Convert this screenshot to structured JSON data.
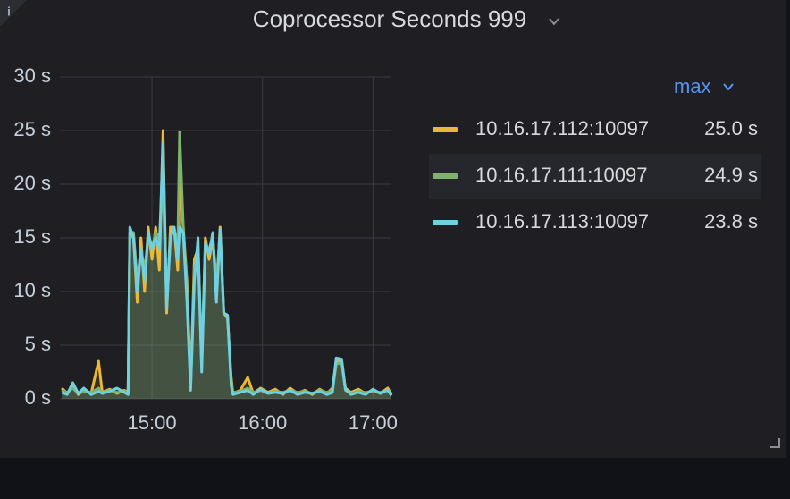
{
  "chart_data": {
    "type": "line",
    "title": "Coprocessor Seconds 999",
    "x": [
      "14:11",
      "14:14",
      "14:17",
      "14:20",
      "14:23",
      "14:27",
      "14:31",
      "14:33",
      "14:37",
      "14:41",
      "14:45",
      "14:47",
      "14:48",
      "14:50",
      "14:52",
      "14:54",
      "14:56",
      "14:58",
      "15:00",
      "15:02",
      "15:04",
      "15:06",
      "15:08",
      "15:10",
      "15:12",
      "15:14",
      "15:15",
      "15:17",
      "15:19",
      "15:21",
      "15:23",
      "15:25",
      "15:27",
      "15:29",
      "15:31",
      "15:33",
      "15:35",
      "15:37",
      "15:39",
      "15:41",
      "15:43",
      "15:44",
      "15:48",
      "15:52",
      "15:55",
      "15:59",
      "16:03",
      "16:07",
      "16:11",
      "16:15",
      "16:19",
      "16:23",
      "16:27",
      "16:31",
      "16:35",
      "16:38",
      "16:40",
      "16:43",
      "16:45",
      "16:48",
      "16:52",
      "16:56",
      "17:00",
      "17:04",
      "17:08",
      "17:10"
    ],
    "xlim": [
      "14:10",
      "17:10"
    ],
    "xticks": [
      "15:00",
      "16:00",
      "17:00"
    ],
    "ylim": [
      0,
      30
    ],
    "yticks": [
      {
        "value": 0,
        "label": "0 s"
      },
      {
        "value": 5,
        "label": "5 s"
      },
      {
        "value": 10,
        "label": "10 s"
      },
      {
        "value": 15,
        "label": "15 s"
      },
      {
        "value": 20,
        "label": "20 s"
      },
      {
        "value": 25,
        "label": "25 s"
      },
      {
        "value": 30,
        "label": "30 s"
      }
    ],
    "grid": true,
    "legend": {
      "position": "right",
      "column": "max"
    },
    "series": [
      {
        "name": "10.16.17.112:10097",
        "color": "#eab839",
        "max": {
          "value": 25.0,
          "label": "25.0 s"
        },
        "values": [
          1,
          0.5,
          1.2,
          0.4,
          0.8,
          0.5,
          3.5,
          0.6,
          0.9,
          0.5,
          0.8,
          0.6,
          15.5,
          15,
          9,
          15,
          10,
          16,
          13,
          16,
          12,
          25,
          8,
          16,
          16,
          12,
          20,
          16,
          11,
          1.5,
          13,
          14,
          3,
          15,
          13,
          15,
          10,
          16,
          8,
          7.5,
          2,
          0.5,
          0.8,
          2,
          0.5,
          1,
          0.6,
          0.9,
          0.4,
          1,
          0.5,
          0.8,
          0.4,
          0.9,
          0.5,
          1,
          3.5,
          3.5,
          1,
          0.6,
          0.9,
          0.5,
          0.8,
          0.5,
          1,
          0.4
        ]
      },
      {
        "name": "10.16.17.111:10097",
        "color": "#7eb26d",
        "max": {
          "value": 24.9,
          "label": "24.9 s"
        },
        "values": [
          0.8,
          0.6,
          1,
          0.5,
          0.7,
          0.6,
          1,
          0.5,
          0.8,
          0.6,
          0.7,
          0.5,
          15,
          15.5,
          11,
          14,
          12,
          15,
          14,
          15.5,
          15,
          20,
          9,
          15,
          16,
          14,
          24.9,
          16,
          10,
          1,
          12,
          14,
          4,
          14,
          14,
          15,
          11,
          15.5,
          8,
          7.8,
          1.5,
          0.6,
          0.7,
          1,
          0.6,
          0.8,
          0.5,
          0.7,
          0.6,
          0.8,
          0.6,
          0.7,
          0.5,
          0.8,
          0.6,
          0.8,
          3.2,
          3.4,
          0.8,
          0.5,
          0.7,
          0.6,
          0.7,
          0.6,
          0.8,
          0.5
        ]
      },
      {
        "name": "10.16.17.113:10097",
        "color": "#6ed0e0",
        "max": {
          "value": 23.8,
          "label": "23.8 s"
        },
        "values": [
          0.6,
          0.4,
          1.5,
          0.5,
          1,
          0.4,
          0.7,
          0.5,
          0.7,
          1,
          0.6,
          0.4,
          16,
          15,
          10,
          14,
          11,
          15.5,
          14,
          15,
          14,
          23.8,
          8.5,
          15,
          16,
          13,
          16,
          15.5,
          9,
          0.8,
          11,
          15,
          2.5,
          14.5,
          13.5,
          15.5,
          9,
          15.8,
          8,
          7.8,
          1.2,
          0.4,
          0.6,
          0.8,
          0.4,
          0.9,
          0.5,
          0.6,
          0.5,
          0.8,
          0.4,
          0.6,
          0.5,
          0.7,
          0.4,
          0.6,
          3.8,
          3.7,
          0.9,
          0.4,
          0.6,
          0.4,
          0.9,
          0.5,
          0.8,
          0.3
        ]
      }
    ]
  }
}
